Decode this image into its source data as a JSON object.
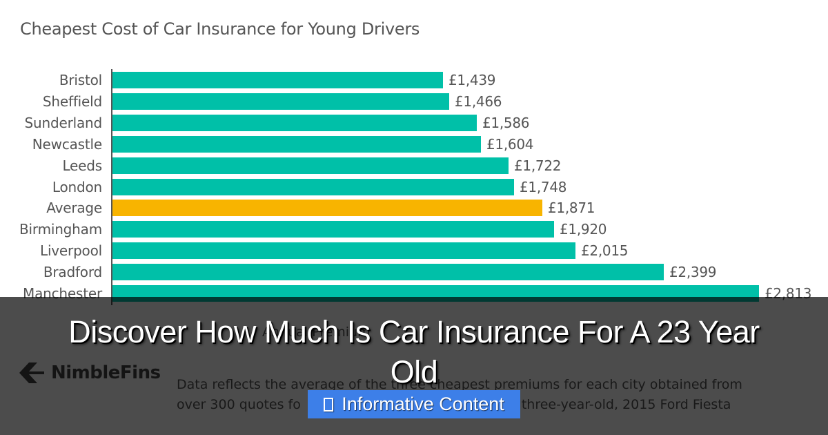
{
  "chart_data": {
    "type": "bar",
    "orientation": "horizontal",
    "title": "Cheapest Cost of Car Insurance for Young Drivers",
    "xlabel": "Annual Premium",
    "ylabel": "",
    "categories": [
      "Bristol",
      "Sheffield",
      "Sunderland",
      "Newcastle",
      "Leeds",
      "London",
      "Average",
      "Birmingham",
      "Liverpool",
      "Bradford",
      "Manchester"
    ],
    "values": [
      1439,
      1466,
      1586,
      1604,
      1722,
      1748,
      1871,
      1920,
      2015,
      2399,
      2813
    ],
    "value_labels": [
      "£1,439",
      "£1,466",
      "£1,586",
      "£1,604",
      "£1,722",
      "£1,748",
      "£1,871",
      "£1,920",
      "£2,015",
      "£2,399",
      "£2,813"
    ],
    "highlight": "Average",
    "colors": {
      "default": "#00c0a8",
      "highlight": "#f8b400"
    },
    "grid": false,
    "legend": null,
    "xlim": [
      0,
      2813
    ]
  },
  "logo": {
    "text": "NimbleFins",
    "icon": "chevron-left-icon"
  },
  "footnote": {
    "line1": "Data reflects the average of the three cheapest premiums for each city obtained from",
    "line2_start": "over 300 quotes fo",
    "line2_end": "three-year-old, 2015 Ford Fiesta"
  },
  "overlay": {
    "headline": "Discover How Much Is Car Insurance For A 23 Year Old",
    "badge": {
      "icon": "document-icon",
      "label": "Informative Content",
      "color": "#3d7fe8"
    }
  }
}
